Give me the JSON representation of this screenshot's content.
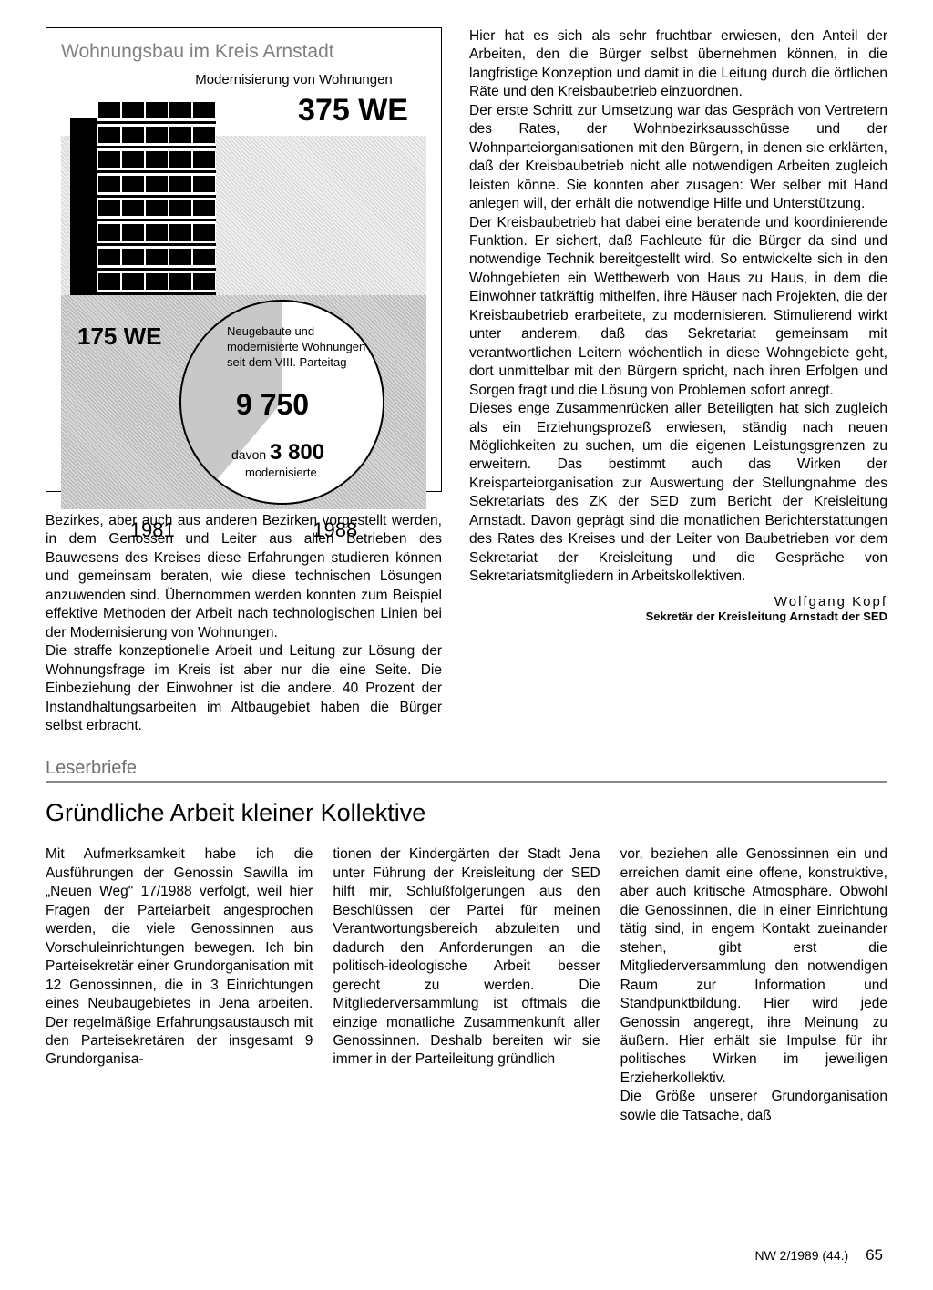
{
  "infographic": {
    "title": "Wohnungsbau im Kreis Arnstadt",
    "subtitle": "Modernisierung von Wohnungen",
    "top_value": "375 WE",
    "left_value": "175 WE",
    "pie_label_line1": "Neugebaute und",
    "pie_label_line2": "modernisierte Wohnungen",
    "pie_label_line3": "seit dem VIII. Parteitag",
    "pie_main_value": "9 750",
    "pie_davon_prefix": "davon ",
    "pie_davon_value": "3 800",
    "pie_modern_label": "modernisierte",
    "year_left": "1981",
    "year_right": "1988",
    "pie_slice_deg": 220,
    "colors": {
      "border": "#000000",
      "title_gray": "#808080",
      "dotted_bg_light": "#f0f0f0",
      "dotted_bg_dark": "#b0b0b0",
      "pie_fill": "#ffffff",
      "pie_slice": "#c8c8c8"
    }
  },
  "left_body": "Bezirkes, aber auch aus anderen Bezirken vorgestellt werden, in dem Genossen und Leiter aus allen Betrieben des Bauwesens des Kreises diese Erfahrungen studieren können und gemeinsam beraten, wie diese technischen Lösungen anzuwenden sind. Übernommen werden konnten zum Beispiel effektive Methoden der Arbeit nach technologischen Linien bei der Modernisierung von Wohnungen.",
  "left_body2": "Die straffe konzeptionelle Arbeit und Leitung zur Lösung der Wohnungsfrage im Kreis ist aber nur die eine Seite. Die Einbeziehung der Einwohner ist die andere. 40 Prozent der Instandhaltungsarbeiten im Altbaugebiet haben die Bürger selbst erbracht.",
  "right_body1": "Hier hat es sich als sehr fruchtbar erwiesen, den Anteil der Arbeiten, den die Bürger selbst übernehmen können, in die langfristige Konzeption und damit in die Leitung durch die örtlichen Räte und den Kreisbaubetrieb einzuordnen.",
  "right_body2": "Der erste Schritt zur Umsetzung war das Gespräch von Vertretern des Rates, der Wohnbezirksausschüsse und der Wohnparteiorganisationen mit den Bürgern, in denen sie erklärten, daß der Kreisbaubetrieb nicht alle notwendigen Arbeiten zugleich leisten könne. Sie konnten aber zusagen: Wer selber mit Hand anlegen will, der erhält die notwendige Hilfe und Unterstützung.",
  "right_body3": "Der Kreisbaubetrieb hat dabei eine beratende und koordinierende Funktion. Er sichert, daß Fachleute für die Bürger da sind und notwendige Technik bereitgestellt wird. So entwickelte sich in den Wohngebieten ein Wettbewerb von Haus zu Haus, in dem die Einwohner tatkräftig mithelfen, ihre Häuser nach Projekten, die der Kreisbaubetrieb erarbeitete, zu modernisieren. Stimulierend wirkt unter anderem, daß das Sekretariat gemeinsam mit verantwortlichen Leitern wöchentlich in diese Wohngebiete geht, dort unmittelbar mit den Bürgern spricht, nach ihren Erfolgen und Sorgen fragt und die Lösung von Problemen sofort anregt.",
  "right_body4": "Dieses enge Zusammenrücken aller Beteiligten hat sich zugleich als ein Erziehungsprozeß erwiesen, ständig nach neuen Möglichkeiten zu suchen, um die eigenen Leistungsgrenzen zu erweitern. Das bestimmt auch das Wirken der Kreisparteiorganisation zur Auswertung der Stellungnahme des Sekretariats des ZK der SED zum Bericht der Kreisleitung Arnstadt. Davon geprägt sind die monatlichen Berichterstattungen des Rates des Kreises und der Leiter von Baubetrieben vor dem Sekretariat der Kreisleitung und die Gespräche von Sekretariatsmitgliedern in Arbeitskollektiven.",
  "author_name": "Wolfgang Kopf",
  "author_title": "Sekretär der Kreisleitung Arnstadt der SED",
  "section_label": "Leserbriefe",
  "headline": "Gründliche Arbeit kleiner Kollektive",
  "col1": "Mit Aufmerksamkeit habe ich die Ausführungen der Genossin Sawilla im „Neuen Weg\" 17/1988 verfolgt, weil hier Fragen der Parteiarbeit angesprochen werden, die viele Genossinnen aus Vorschuleinrichtungen bewegen. Ich bin Parteisekretär einer Grundorganisation mit 12 Genossinnen, die in 3 Einrichtungen eines Neubaugebietes in Jena arbeiten. Der regelmäßige Erfahrungsaustausch mit den Parteisekretären der insgesamt 9 Grundorganisa-",
  "col2": "tionen der Kindergärten der Stadt Jena unter Führung der Kreisleitung der SED hilft mir, Schlußfolgerungen aus den Beschlüssen der Partei für meinen Verantwortungsbereich abzuleiten und dadurch den Anforderungen an die politisch-ideologische Arbeit besser gerecht zu werden. Die Mitgliederversammlung ist oftmals die einzige monatliche Zusammenkunft aller Genossinnen. Deshalb bereiten wir sie immer in der Parteileitung gründlich",
  "col3": "vor, beziehen alle Genossinnen ein und erreichen damit eine offene, konstruktive, aber auch kritische Atmosphäre. Obwohl die Genossinnen, die in einer Einrichtung tätig sind, in engem Kontakt zueinander stehen, gibt erst die Mitgliederversammlung den notwendigen Raum zur Information und Standpunktbildung. Hier wird jede Genossin angeregt, ihre Meinung zu äußern. Hier erhält sie Impulse für ihr politisches Wirken im jeweiligen Erzieherkollektiv.",
  "col3b": "Die Größe unserer Grundorganisation sowie die Tatsache, daß",
  "footer_issue": "NW 2/1989 (44.)",
  "footer_page": "65"
}
